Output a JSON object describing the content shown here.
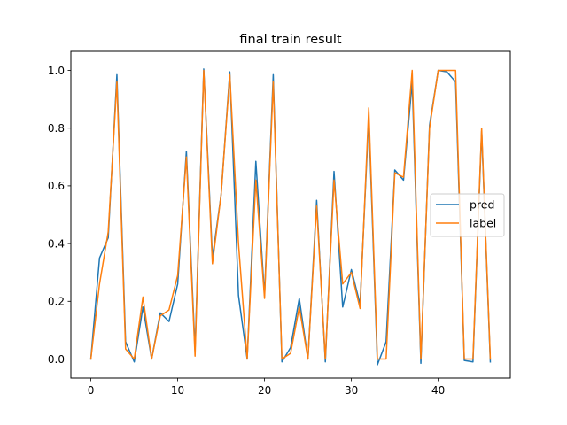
{
  "chart_data": {
    "type": "line",
    "title": "final train result",
    "xlabel": "",
    "ylabel": "",
    "xlim": [
      -2.3,
      48.3
    ],
    "ylim": [
      -0.066,
      1.066
    ],
    "xticks": [
      0,
      10,
      20,
      30,
      40
    ],
    "yticks": [
      0.0,
      0.2,
      0.4,
      0.6,
      0.8,
      1.0
    ],
    "xtick_labels": [
      "0",
      "10",
      "20",
      "30",
      "40"
    ],
    "ytick_labels": [
      "0.0",
      "0.2",
      "0.4",
      "0.6",
      "0.8",
      "1.0"
    ],
    "grid": false,
    "legend_position": "center-right",
    "x": [
      0,
      1,
      2,
      3,
      4,
      5,
      6,
      7,
      8,
      9,
      10,
      11,
      12,
      13,
      14,
      15,
      16,
      17,
      18,
      19,
      20,
      21,
      22,
      23,
      24,
      25,
      26,
      27,
      28,
      29,
      30,
      31,
      32,
      33,
      34,
      35,
      36,
      37,
      38,
      39,
      40,
      41,
      42,
      43,
      44,
      45,
      46
    ],
    "series": [
      {
        "name": "pred",
        "color": "#1f77b4",
        "values": [
          0.0,
          0.35,
          0.42,
          0.985,
          0.06,
          -0.01,
          0.18,
          0.0,
          0.16,
          0.13,
          0.26,
          0.72,
          0.03,
          1.005,
          0.35,
          0.57,
          0.995,
          0.22,
          0.0,
          0.685,
          0.22,
          0.985,
          -0.01,
          0.04,
          0.21,
          0.0,
          0.55,
          -0.01,
          0.65,
          0.18,
          0.31,
          0.19,
          0.84,
          -0.02,
          0.06,
          0.655,
          0.62,
          0.96,
          -0.015,
          0.81,
          1.0,
          0.995,
          0.96,
          -0.005,
          -0.01,
          0.79,
          -0.01
        ]
      },
      {
        "name": "label",
        "color": "#ff7f0e",
        "values": [
          0.0,
          0.26,
          0.44,
          0.96,
          0.035,
          0.0,
          0.215,
          0.0,
          0.15,
          0.17,
          0.29,
          0.7,
          0.01,
          1.0,
          0.33,
          0.57,
          0.985,
          0.4,
          0.0,
          0.62,
          0.21,
          0.96,
          0.0,
          0.02,
          0.18,
          0.0,
          0.53,
          0.0,
          0.62,
          0.26,
          0.3,
          0.175,
          0.87,
          0.0,
          0.0,
          0.645,
          0.63,
          1.0,
          0.0,
          0.8,
          1.0,
          1.0,
          1.0,
          0.0,
          0.0,
          0.8,
          0.0
        ]
      }
    ]
  }
}
